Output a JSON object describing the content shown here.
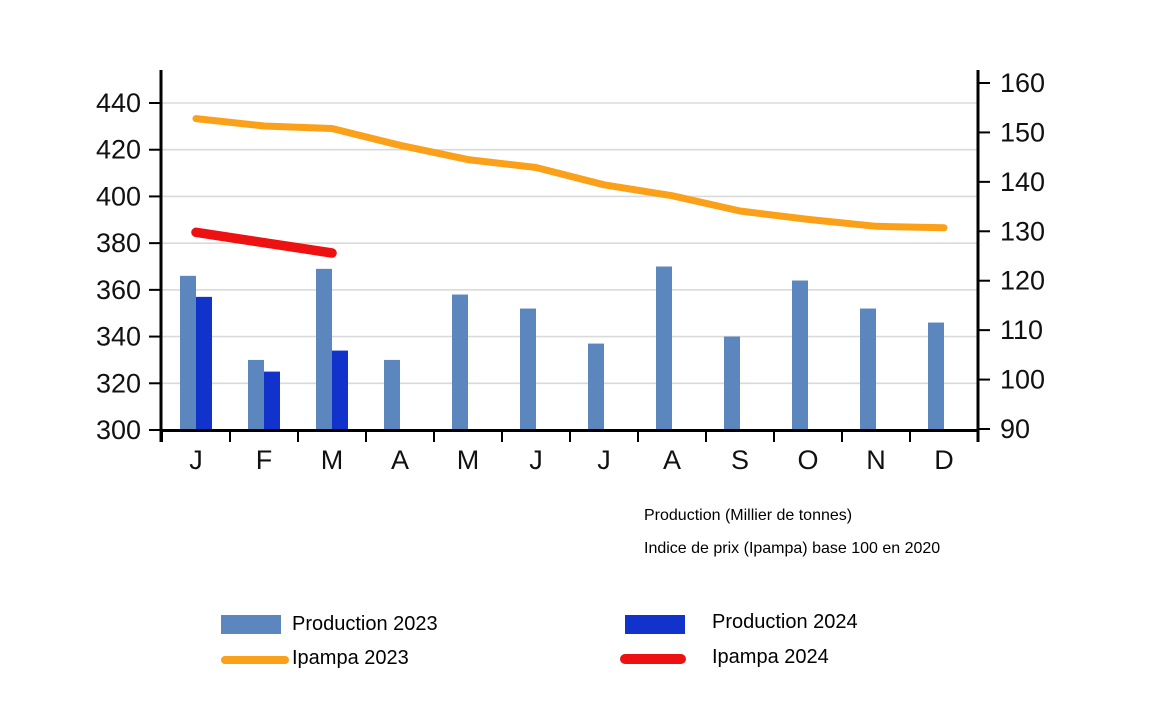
{
  "captions": {
    "production": "Production (Millier de tonnes)",
    "price_index": "Indice de prix (Ipampa) base 100 en 2020"
  },
  "legend": {
    "production_2023": {
      "label": "Production 2023",
      "color": "#5B87BE"
    },
    "production_2024": {
      "label": "Production 2024",
      "color": "#1232CC"
    },
    "ipampa_2023": {
      "label": "Ipampa 2023",
      "color": "#FBA019"
    },
    "ipampa_2024": {
      "label": "Ipampa 2024",
      "color": "#EE1111"
    }
  },
  "chart_data": {
    "type": "bar",
    "subtype": "combo-bar-line-dual-axis",
    "categories": [
      "J",
      "F",
      "M",
      "A",
      "M",
      "J",
      "J",
      "A",
      "S",
      "O",
      "N",
      "D"
    ],
    "series": [
      {
        "name": "Production 2023",
        "render": "bar",
        "axis": "left",
        "color": "#5B87BE",
        "values": [
          366,
          330,
          369,
          330,
          358,
          352,
          337,
          370,
          340,
          364,
          352,
          346
        ]
      },
      {
        "name": "Production 2024",
        "render": "bar",
        "axis": "left",
        "color": "#1232CC",
        "values": [
          357,
          325,
          334,
          null,
          null,
          null,
          null,
          null,
          null,
          null,
          null,
          null
        ]
      },
      {
        "name": "Ipampa 2023",
        "render": "line",
        "axis": "right",
        "color": "#FBA019",
        "values": [
          152.8,
          151.3,
          150.8,
          147.4,
          144.5,
          142.9,
          139.4,
          137.2,
          134.1,
          132.4,
          131.0,
          130.7
        ]
      },
      {
        "name": "Ipampa 2024",
        "render": "line",
        "axis": "right",
        "color": "#EE1111",
        "values": [
          129.8,
          127.7,
          125.6,
          null,
          null,
          null,
          null,
          null,
          null,
          null,
          null,
          null
        ]
      }
    ],
    "left_axis": {
      "min": 300,
      "max": 440,
      "step": 20,
      "ticks": [
        300,
        320,
        340,
        360,
        380,
        400,
        420,
        440
      ]
    },
    "right_axis": {
      "min": 90,
      "max": 160,
      "step": 10,
      "ticks": [
        90,
        100,
        110,
        120,
        130,
        140,
        150,
        160
      ]
    },
    "grid": {
      "horizontal": true,
      "color": "#DADADA"
    },
    "axis_color": "#000000",
    "legend_position": "bottom"
  }
}
